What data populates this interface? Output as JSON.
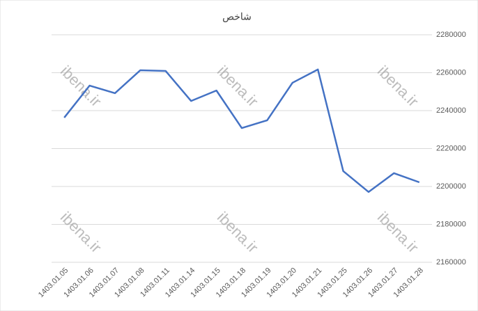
{
  "chart_data": {
    "type": "line",
    "title": "شاخص",
    "watermark": "ibena.ir",
    "categories": [
      "1403.01.05",
      "1403.01.06",
      "1403.01.07",
      "1403.01.08",
      "1403.01.11",
      "1403.01.14",
      "1403.01.15",
      "1403.01.18",
      "1403.01.19",
      "1403.01.20",
      "1403.01.21",
      "1403.01.25",
      "1403.01.26",
      "1403.01.27",
      "1403.01.28"
    ],
    "series": [
      {
        "name": "شاخص",
        "color": "#4472c4",
        "values": [
          2236300,
          2253200,
          2249200,
          2261300,
          2260900,
          2245100,
          2250600,
          2230800,
          2234900,
          2254700,
          2261700,
          2208100,
          2197100,
          2207000,
          2202200
        ]
      }
    ],
    "ylim": [
      2160000,
      2280000
    ],
    "yticks": [
      2160000,
      2180000,
      2200000,
      2220000,
      2240000,
      2260000,
      2280000
    ],
    "grid": true,
    "y_axis_side": "right"
  }
}
